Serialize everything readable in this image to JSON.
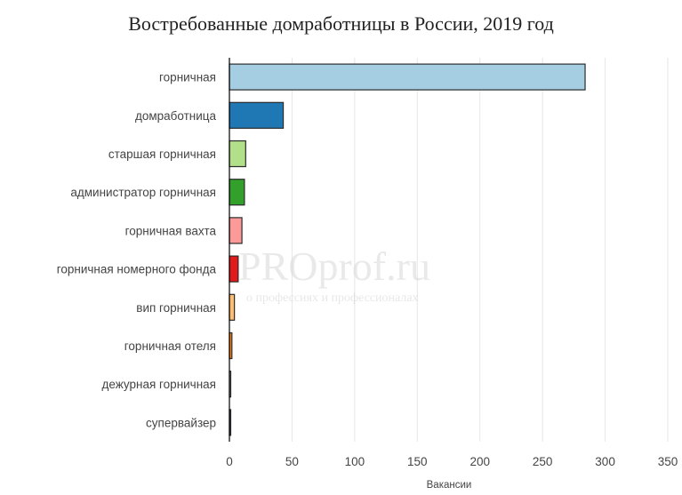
{
  "chart_data": {
    "type": "bar",
    "orientation": "horizontal",
    "title": "Востребованные домработницы в России, 2019 год",
    "xlabel": "Вакансии",
    "ylabel": "",
    "xlim": [
      0,
      350
    ],
    "xticks": [
      0,
      50,
      100,
      150,
      200,
      250,
      300,
      350
    ],
    "grid": "vertical",
    "legend": "none",
    "categories": [
      "горничная",
      "домработница",
      "старшая горничная",
      "администратор горничная",
      "горничная вахта",
      "горничная номерного фонда",
      "вип горничная",
      "горничная отеля",
      "дежурная горничная",
      "супервайзер"
    ],
    "values": [
      284,
      43,
      13,
      12,
      10,
      7,
      4,
      2,
      1,
      1
    ],
    "colors": [
      "#a6cee3",
      "#1f78b4",
      "#b2df8a",
      "#33a02c",
      "#fb9a99",
      "#e31a1c",
      "#fdbf6f",
      "#ff7f00",
      "#cab2d6",
      "#6a3d9a"
    ]
  },
  "watermark": {
    "main": "PROprof.ru",
    "sub": "о профессиях и профессионалах"
  }
}
